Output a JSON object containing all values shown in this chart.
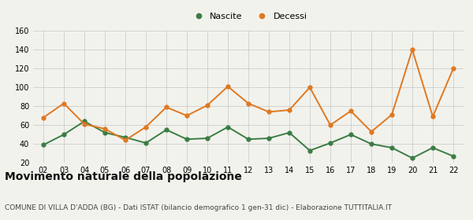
{
  "years": [
    "02",
    "03",
    "04",
    "05",
    "06",
    "07",
    "08",
    "09",
    "10",
    "11",
    "12",
    "13",
    "14",
    "15",
    "16",
    "17",
    "18",
    "19",
    "20",
    "21",
    "22"
  ],
  "nascite": [
    39,
    50,
    64,
    52,
    47,
    41,
    55,
    45,
    46,
    58,
    45,
    46,
    52,
    33,
    41,
    50,
    40,
    36,
    25,
    36,
    27
  ],
  "decessi": [
    68,
    83,
    61,
    56,
    44,
    58,
    79,
    70,
    81,
    101,
    83,
    74,
    76,
    100,
    60,
    75,
    53,
    71,
    140,
    69,
    120
  ],
  "nascite_color": "#3a7d44",
  "decessi_color": "#e07820",
  "bg_color": "#f2f2ed",
  "grid_color": "#cccccc",
  "ylim": [
    20,
    160
  ],
  "yticks": [
    20,
    40,
    60,
    80,
    100,
    120,
    140,
    160
  ],
  "title": "Movimento naturale della popolazione",
  "subtitle": "COMUNE DI VILLA D'ADDA (BG) - Dati ISTAT (bilancio demografico 1 gen-31 dic) - Elaborazione TUTTITALIA.IT",
  "legend_nascite": "Nascite",
  "legend_decessi": "Decessi",
  "title_fontsize": 10,
  "subtitle_fontsize": 6.5,
  "tick_fontsize": 7,
  "legend_fontsize": 8,
  "marker_size": 3.5,
  "line_width": 1.4
}
